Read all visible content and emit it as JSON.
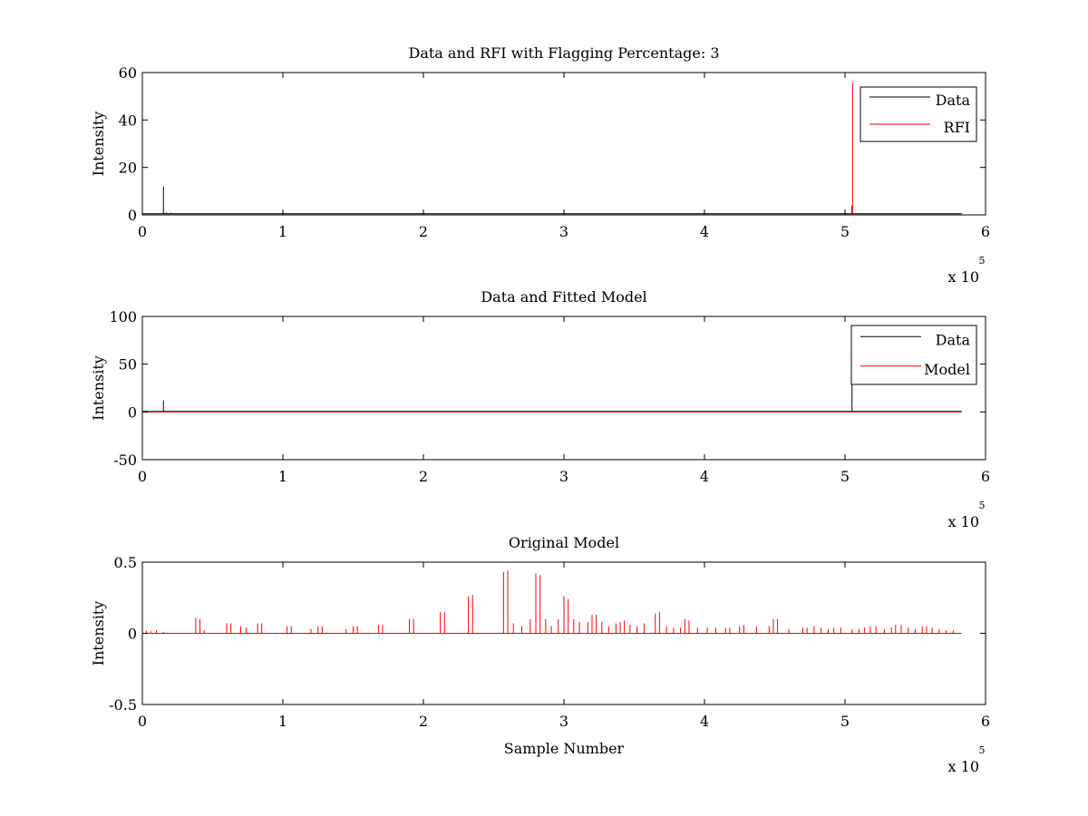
{
  "figure": {
    "background": "#ffffff",
    "axis_color": "#000000"
  },
  "chart_data": [
    {
      "type": "line",
      "title": "Data and RFI with Flagging Percentage: 3",
      "xlabel": "",
      "ylabel": "Intensity",
      "xlim": [
        0,
        600000
      ],
      "ylim": [
        0,
        60
      ],
      "xticks": [
        0,
        100000,
        200000,
        300000,
        400000,
        500000,
        600000
      ],
      "xtick_labels": [
        "0",
        "1",
        "2",
        "3",
        "4",
        "5",
        "6"
      ],
      "yticks": [
        0,
        20,
        40,
        60
      ],
      "ytick_labels": [
        "0",
        "20",
        "40",
        "60"
      ],
      "x_multiplier": {
        "base": "x 10",
        "exponent": "5"
      },
      "legend": {
        "position": "top-right",
        "entries": [
          "Data",
          "RFI"
        ]
      },
      "series": [
        {
          "name": "Data",
          "color": "#000000",
          "baseline": 0.5,
          "x_range": [
            0,
            583000
          ],
          "spikes": [
            [
              15000,
              12
            ],
            [
              17000,
              1
            ],
            [
              20500,
              0.9
            ],
            [
              505000,
              4
            ]
          ]
        },
        {
          "name": "RFI",
          "color": "#ff0000",
          "baseline": 0,
          "x_range": [
            0,
            583000
          ],
          "spikes": [
            [
              505400,
              56
            ],
            [
              526000,
              0.3
            ],
            [
              560000,
              0.3
            ]
          ]
        }
      ]
    },
    {
      "type": "line",
      "title": "Data and Fitted Model",
      "xlabel": "",
      "ylabel": "Intensity",
      "xlim": [
        0,
        600000
      ],
      "ylim": [
        -50,
        100
      ],
      "xticks": [
        0,
        100000,
        200000,
        300000,
        400000,
        500000,
        600000
      ],
      "xtick_labels": [
        "0",
        "1",
        "2",
        "3",
        "4",
        "5",
        "6"
      ],
      "yticks": [
        -50,
        0,
        50,
        100
      ],
      "ytick_labels": [
        "-50",
        "0",
        "50",
        "100"
      ],
      "x_multiplier": {
        "base": "x 10",
        "exponent": "5"
      },
      "legend": {
        "position": "top-right",
        "entries": [
          "Data",
          "Model"
        ]
      },
      "series": [
        {
          "name": "Data",
          "color": "#000000",
          "baseline": 0.5,
          "x_range": [
            0,
            583000
          ],
          "spikes": [
            [
              15000,
              12
            ],
            [
              505000,
              34
            ]
          ]
        },
        {
          "name": "Model",
          "color": "#ff0000",
          "baseline": 0,
          "x_range": [
            0,
            583000
          ],
          "spikes": []
        }
      ]
    },
    {
      "type": "line",
      "title": "Original Model",
      "xlabel": "Sample Number",
      "ylabel": "Intensity",
      "xlim": [
        0,
        600000
      ],
      "ylim": [
        -0.5,
        0.5
      ],
      "xticks": [
        0,
        100000,
        200000,
        300000,
        400000,
        500000,
        600000
      ],
      "xtick_labels": [
        "0",
        "1",
        "2",
        "3",
        "4",
        "5",
        "6"
      ],
      "yticks": [
        -0.5,
        0,
        0.5
      ],
      "ytick_labels": [
        "-0.5",
        "0",
        "0.5"
      ],
      "x_multiplier": {
        "base": "x 10",
        "exponent": "5"
      },
      "legend": null,
      "series": [
        {
          "name": "",
          "color": "#ff0000",
          "baseline": 0,
          "x_range": [
            0,
            583000
          ],
          "spikes": [
            [
              3000,
              0.02
            ],
            [
              6000,
              0.015
            ],
            [
              10000,
              0.02
            ],
            [
              15000,
              0.01
            ],
            [
              38000,
              0.11
            ],
            [
              41000,
              0.1
            ],
            [
              44000,
              0.02
            ],
            [
              60000,
              0.07
            ],
            [
              63000,
              0.07
            ],
            [
              70000,
              0.05
            ],
            [
              74000,
              0.04
            ],
            [
              82000,
              0.07
            ],
            [
              85000,
              0.07
            ],
            [
              103000,
              0.05
            ],
            [
              106000,
              0.05
            ],
            [
              120000,
              0.03
            ],
            [
              125000,
              0.05
            ],
            [
              128000,
              0.05
            ],
            [
              145000,
              0.03
            ],
            [
              150000,
              0.05
            ],
            [
              153000,
              0.05
            ],
            [
              168000,
              0.06
            ],
            [
              171000,
              0.06
            ],
            [
              190000,
              0.1
            ],
            [
              193000,
              0.1
            ],
            [
              212000,
              0.15
            ],
            [
              215000,
              0.15
            ],
            [
              232000,
              0.26
            ],
            [
              235000,
              0.27
            ],
            [
              257000,
              0.43
            ],
            [
              260000,
              0.44
            ],
            [
              264000,
              0.07
            ],
            [
              270000,
              0.05
            ],
            [
              276000,
              0.1
            ],
            [
              280000,
              0.42
            ],
            [
              283000,
              0.41
            ],
            [
              287000,
              0.1
            ],
            [
              291000,
              0.05
            ],
            [
              296000,
              0.1
            ],
            [
              300000,
              0.26
            ],
            [
              303000,
              0.24
            ],
            [
              307000,
              0.1
            ],
            [
              311000,
              0.08
            ],
            [
              317000,
              0.08
            ],
            [
              320000,
              0.13
            ],
            [
              323000,
              0.13
            ],
            [
              327000,
              0.08
            ],
            [
              332000,
              0.05
            ],
            [
              337000,
              0.07
            ],
            [
              340000,
              0.08
            ],
            [
              343000,
              0.09
            ],
            [
              347000,
              0.06
            ],
            [
              352000,
              0.05
            ],
            [
              357000,
              0.07
            ],
            [
              365000,
              0.14
            ],
            [
              368000,
              0.15
            ],
            [
              373000,
              0.05
            ],
            [
              378000,
              0.04
            ],
            [
              383000,
              0.04
            ],
            [
              386000,
              0.1
            ],
            [
              389000,
              0.09
            ],
            [
              395000,
              0.04
            ],
            [
              402000,
              0.04
            ],
            [
              408000,
              0.04
            ],
            [
              415000,
              0.04
            ],
            [
              418000,
              0.04
            ],
            [
              425000,
              0.05
            ],
            [
              428000,
              0.06
            ],
            [
              437000,
              0.05
            ],
            [
              446000,
              0.05
            ],
            [
              449000,
              0.1
            ],
            [
              452000,
              0.1
            ],
            [
              460000,
              0.03
            ],
            [
              470000,
              0.04
            ],
            [
              473000,
              0.04
            ],
            [
              478000,
              0.05
            ],
            [
              483000,
              0.04
            ],
            [
              488000,
              0.03
            ],
            [
              492000,
              0.04
            ],
            [
              497000,
              0.04
            ],
            [
              505000,
              0.03
            ],
            [
              510000,
              0.03
            ],
            [
              514000,
              0.04
            ],
            [
              518000,
              0.05
            ],
            [
              522000,
              0.05
            ],
            [
              528000,
              0.03
            ],
            [
              533000,
              0.04
            ],
            [
              536000,
              0.06
            ],
            [
              540000,
              0.06
            ],
            [
              545000,
              0.04
            ],
            [
              550000,
              0.03
            ],
            [
              555000,
              0.05
            ],
            [
              558000,
              0.05
            ],
            [
              562000,
              0.04
            ],
            [
              567000,
              0.03
            ],
            [
              572000,
              0.02
            ],
            [
              577000,
              0.02
            ]
          ]
        }
      ]
    }
  ]
}
